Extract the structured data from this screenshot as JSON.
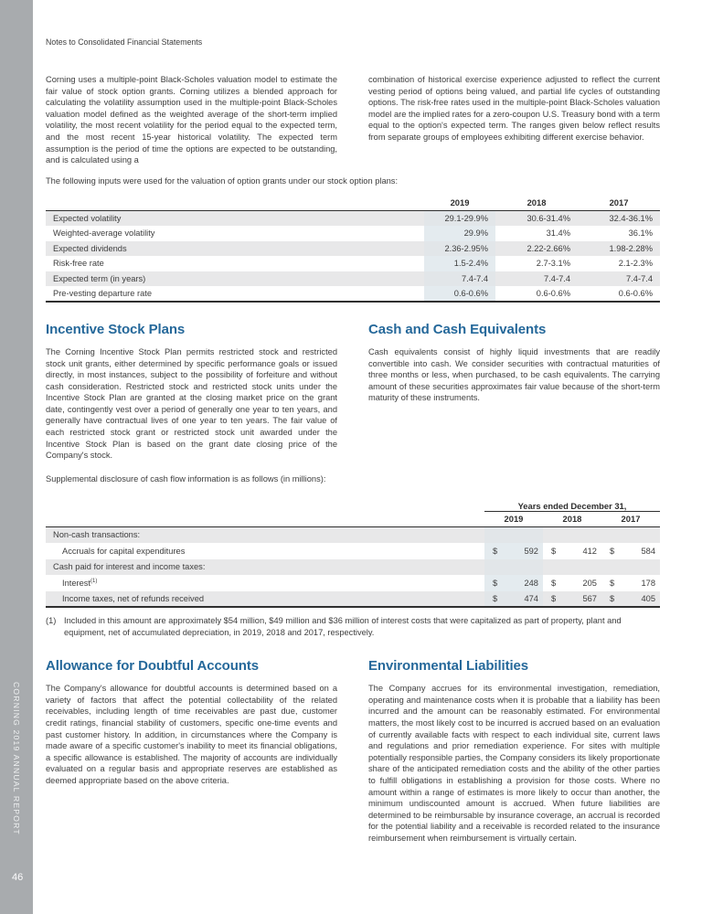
{
  "page": {
    "header": "Notes to Consolidated Financial Statements",
    "sidebar_text": "CORNING 2019 ANNUAL REPORT",
    "page_number": "46"
  },
  "colors": {
    "accent": "#25689a",
    "sidebar_gray": "#a8abae",
    "row_shade": "#e8e8e9",
    "year_highlight": "rgba(188,204,215,0.40)"
  },
  "intro": {
    "col_left": "Corning uses a multiple-point Black-Scholes valuation model to estimate the fair value of stock option grants. Corning utilizes a blended approach for calculating the volatility assumption used in the multiple-point Black-Scholes valuation model defined as the weighted average of the short-term implied volatility, the most recent volatility for the period equal to the expected term, and the most recent 15-year historical volatility. The expected term assumption is the period of time the options are expected to be outstanding, and is calculated using a",
    "col_right": "combination of historical exercise experience adjusted to reflect the current vesting period of options being valued, and partial life cycles of outstanding options. The risk-free rates used in the multiple-point Black-Scholes valuation model are the implied rates for a zero-coupon U.S. Treasury bond with a term equal to the option's expected term. The ranges given below reflect results from separate groups of employees exhibiting different exercise behavior.",
    "table_lead": "The following inputs were used for the valuation of option grants under our stock option plans:"
  },
  "options_table": {
    "years": [
      "2019",
      "2018",
      "2017"
    ],
    "rows": [
      {
        "label": "Expected volatility",
        "values": [
          "29.1-29.9%",
          "30.6-31.4%",
          "32.4-36.1%"
        ]
      },
      {
        "label": "Weighted-average volatility",
        "values": [
          "29.9%",
          "31.4%",
          "36.1%"
        ]
      },
      {
        "label": "Expected dividends",
        "values": [
          "2.36-2.95%",
          "2.22-2.66%",
          "1.98-2.28%"
        ]
      },
      {
        "label": "Risk-free rate",
        "values": [
          "1.5-2.4%",
          "2.7-3.1%",
          "2.1-2.3%"
        ]
      },
      {
        "label": "Expected term (in years)",
        "values": [
          "7.4-7.4",
          "7.4-7.4",
          "7.4-7.4"
        ]
      },
      {
        "label": "Pre-vesting departure rate",
        "values": [
          "0.6-0.6%",
          "0.6-0.6%",
          "0.6-0.6%"
        ]
      }
    ]
  },
  "sections": {
    "incentive": {
      "title": "Incentive Stock Plans",
      "body": "The Corning Incentive Stock Plan permits restricted stock and restricted stock unit grants, either determined by specific performance goals or issued directly, in most instances, subject to the possibility of forfeiture and without cash consideration. Restricted stock and restricted stock units under the Incentive Stock Plan are granted at the closing market price on the grant date, contingently vest over a period of generally one year to ten years, and generally have contractual lives of one year to ten years. The fair value of each restricted stock grant or restricted stock unit awarded under the Incentive Stock Plan is based on the grant date closing price of the Company's stock.",
      "supplemental": "Supplemental disclosure of cash flow information is as follows (in millions):"
    },
    "cash": {
      "title": "Cash and Cash Equivalents",
      "body": "Cash equivalents consist of highly liquid investments that are readily convertible into cash. We consider securities with contractual maturities of three months or less, when purchased, to be cash equivalents. The carrying amount of these securities approximates fair value because of the short-term maturity of these instruments."
    },
    "allowance": {
      "title": "Allowance for Doubtful Accounts",
      "body": "The Company's allowance for doubtful accounts is determined based on a variety of factors that affect the potential collectability of the related receivables, including length of time receivables are past due, customer credit ratings, financial stability of customers, specific one-time events and past customer history. In addition, in circumstances where the Company is made aware of a specific customer's inability to meet its financial obligations, a specific allowance is established. The majority of accounts are individually evaluated on a regular basis and appropriate reserves are established as deemed appropriate based on the above criteria."
    },
    "environmental": {
      "title": "Environmental Liabilities",
      "body": "The Company accrues for its environmental investigation, remediation, operating and maintenance costs when it is probable that a liability has been incurred and the amount can be reasonably estimated. For environmental matters, the most likely cost to be incurred is accrued based on an evaluation of currently available facts with respect to each individual site, current laws and regulations and prior remediation experience. For sites with multiple potentially responsible parties, the Company considers its likely proportionate share of the anticipated remediation costs and the ability of the other parties to fulfill obligations in establishing a provision for those costs. Where no amount within a range of estimates is more likely to occur than another, the minimum undiscounted amount is accrued. When future liabilities are determined to be reimbursable by insurance coverage, an accrual is recorded for the potential liability and a receivable is recorded related to the insurance reimbursement when reimbursement is virtually certain."
    }
  },
  "cashflow_table": {
    "span_header": "Years ended December 31,",
    "years": [
      "2019",
      "2018",
      "2017"
    ],
    "currency": "$",
    "rows": [
      {
        "label": "Non-cash transactions:",
        "indent": false,
        "values": null
      },
      {
        "label": "Accruals for capital expenditures",
        "indent": true,
        "values": [
          "592",
          "412",
          "584"
        ]
      },
      {
        "label": "Cash paid for interest and income taxes:",
        "indent": false,
        "values": null
      },
      {
        "label": "Interest",
        "sup": "(1)",
        "indent": true,
        "values": [
          "248",
          "205",
          "178"
        ]
      },
      {
        "label": "Income taxes, net of refunds received",
        "indent": true,
        "values": [
          "474",
          "567",
          "405"
        ]
      }
    ],
    "footnote_marker": "(1)",
    "footnote_text": "Included in this amount are approximately $54 million, $49 million and $36 million of interest costs that were capitalized as part of property, plant and equipment, net of accumulated depreciation, in 2019, 2018 and 2017, respectively."
  }
}
